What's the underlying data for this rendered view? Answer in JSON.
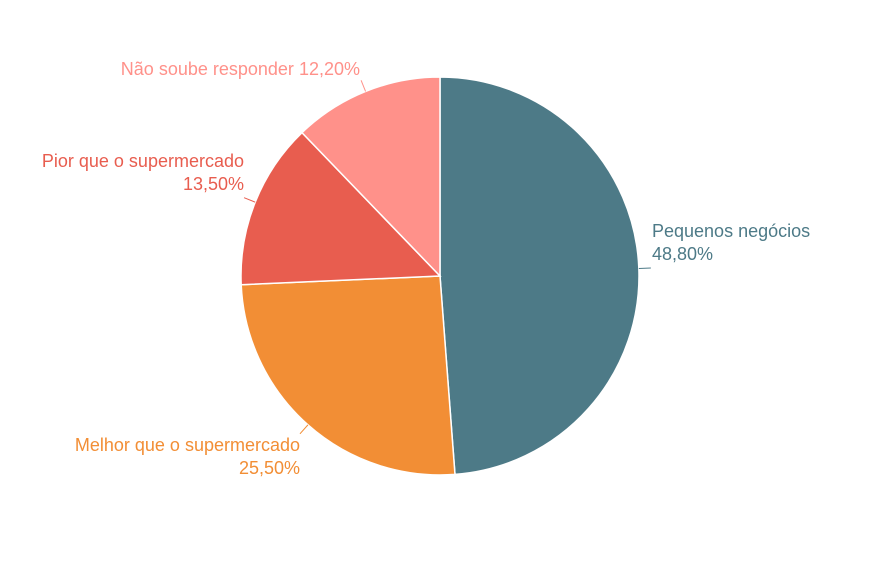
{
  "chart_data": {
    "type": "pie",
    "categories": [
      "Pequenos negócios",
      "Melhor que o supermercado",
      "Pior que o supermercado",
      "Não soube responder"
    ],
    "values": [
      48.8,
      25.5,
      13.5,
      12.2
    ],
    "value_labels": [
      "48,80%",
      "25,50%",
      "13,50%",
      "12,20%"
    ],
    "colors": [
      "#4d7a87",
      "#f28e35",
      "#e85d4f",
      "#ff918a"
    ]
  }
}
